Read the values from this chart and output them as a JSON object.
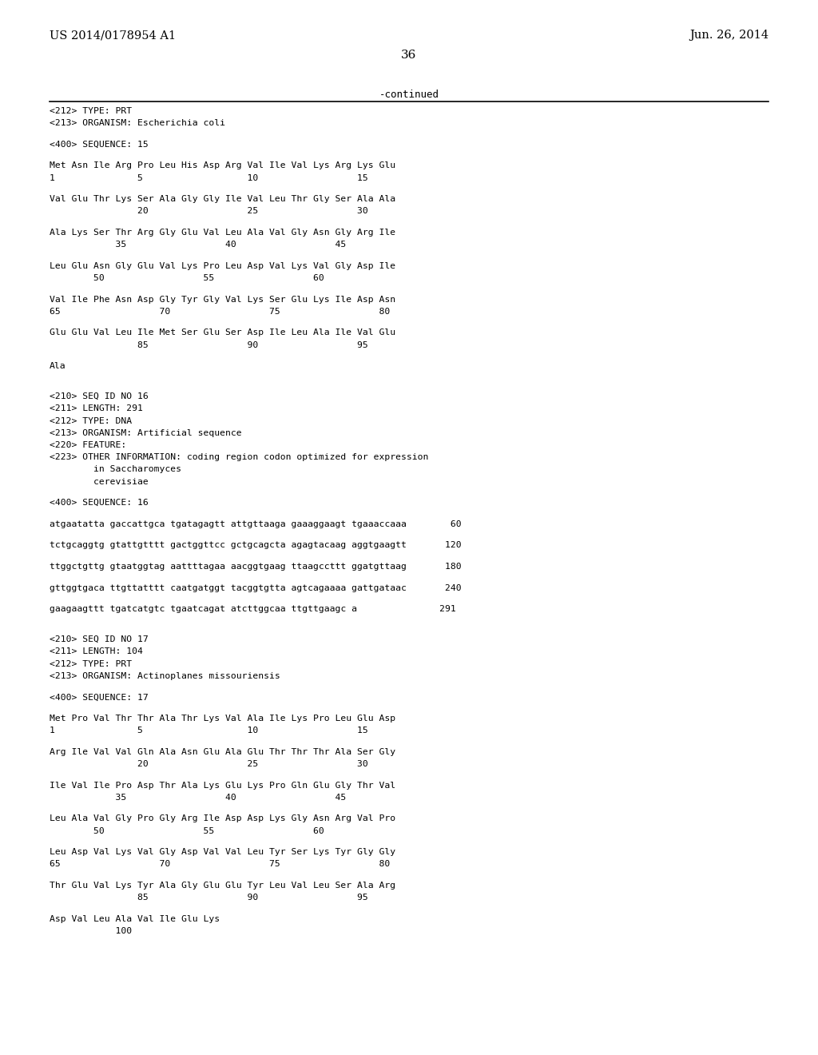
{
  "bg_color": "#ffffff",
  "header_left": "US 2014/0178954 A1",
  "header_right": "Jun. 26, 2014",
  "page_number": "36",
  "continued_text": "-continued",
  "content": [
    "<212> TYPE: PRT",
    "<213> ORGANISM: Escherichia coli",
    "",
    "<400> SEQUENCE: 15",
    "",
    "Met Asn Ile Arg Pro Leu His Asp Arg Val Ile Val Lys Arg Lys Glu",
    "1               5                   10                  15",
    "",
    "Val Glu Thr Lys Ser Ala Gly Gly Ile Val Leu Thr Gly Ser Ala Ala",
    "                20                  25                  30",
    "",
    "Ala Lys Ser Thr Arg Gly Glu Val Leu Ala Val Gly Asn Gly Arg Ile",
    "            35                  40                  45",
    "",
    "Leu Glu Asn Gly Glu Val Lys Pro Leu Asp Val Lys Val Gly Asp Ile",
    "        50                  55                  60",
    "",
    "Val Ile Phe Asn Asp Gly Tyr Gly Val Lys Ser Glu Lys Ile Asp Asn",
    "65                  70                  75                  80",
    "",
    "Glu Glu Val Leu Ile Met Ser Glu Ser Asp Ile Leu Ala Ile Val Glu",
    "                85                  90                  95",
    "",
    "Ala",
    "",
    "",
    "<210> SEQ ID NO 16",
    "<211> LENGTH: 291",
    "<212> TYPE: DNA",
    "<213> ORGANISM: Artificial sequence",
    "<220> FEATURE:",
    "<223> OTHER INFORMATION: coding region codon optimized for expression",
    "        in Saccharomyces",
    "        cerevisiae",
    "",
    "<400> SEQUENCE: 16",
    "",
    "atgaatatta gaccattgca tgatagagtt attgttaaga gaaaggaagt tgaaaccaaa        60",
    "",
    "tctgcaggtg gtattgtttt gactggttcc gctgcagcta agagtacaag aggtgaagtt       120",
    "",
    "ttggctgttg gtaatggtag aattttagaa aacggtgaag ttaagccttt ggatgttaag       180",
    "",
    "gttggtgaca ttgttatttt caatgatggt tacggtgtta agtcagaaaa gattgataac       240",
    "",
    "gaagaagttt tgatcatgtc tgaatcagat atcttggcaa ttgttgaagc a               291",
    "",
    "",
    "<210> SEQ ID NO 17",
    "<211> LENGTH: 104",
    "<212> TYPE: PRT",
    "<213> ORGANISM: Actinoplanes missouriensis",
    "",
    "<400> SEQUENCE: 17",
    "",
    "Met Pro Val Thr Thr Ala Thr Lys Val Ala Ile Lys Pro Leu Glu Asp",
    "1               5                   10                  15",
    "",
    "Arg Ile Val Val Gln Ala Asn Glu Ala Glu Thr Thr Thr Ala Ser Gly",
    "                20                  25                  30",
    "",
    "Ile Val Ile Pro Asp Thr Ala Lys Glu Lys Pro Gln Glu Gly Thr Val",
    "            35                  40                  45",
    "",
    "Leu Ala Val Gly Pro Gly Arg Ile Asp Asp Lys Gly Asn Arg Val Pro",
    "        50                  55                  60",
    "",
    "Leu Asp Val Lys Val Gly Asp Val Val Leu Tyr Ser Lys Tyr Gly Gly",
    "65                  70                  75                  80",
    "",
    "Thr Glu Val Lys Tyr Ala Gly Glu Glu Tyr Leu Val Leu Ser Ala Arg",
    "                85                  90                  95",
    "",
    "Asp Val Leu Ala Val Ile Glu Lys",
    "            100"
  ]
}
